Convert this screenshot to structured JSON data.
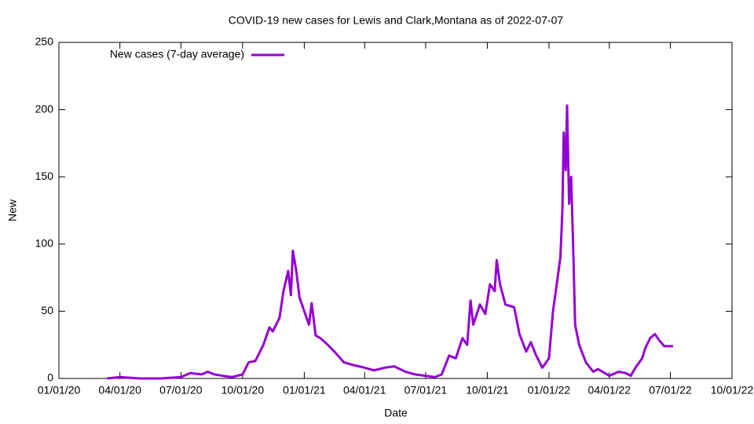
{
  "chart_data": {
    "type": "line",
    "title": "COVID-19 new cases for Lewis and Clark,Montana as of 2022-07-07",
    "xlabel": "Date",
    "ylabel": "New",
    "x": [
      "2020-03-13",
      "2020-04-01",
      "2020-05-01",
      "2020-06-01",
      "2020-07-01",
      "2020-07-15",
      "2020-08-01",
      "2020-08-10",
      "2020-08-20",
      "2020-09-01",
      "2020-09-15",
      "2020-10-01",
      "2020-10-10",
      "2020-10-20",
      "2020-11-01",
      "2020-11-10",
      "2020-11-15",
      "2020-11-25",
      "2020-12-01",
      "2020-12-08",
      "2020-12-12",
      "2020-12-15",
      "2020-12-20",
      "2020-12-25",
      "2021-01-01",
      "2021-01-08",
      "2021-01-12",
      "2021-01-18",
      "2021-01-25",
      "2021-02-05",
      "2021-02-15",
      "2021-03-01",
      "2021-03-15",
      "2021-04-01",
      "2021-04-15",
      "2021-05-01",
      "2021-05-15",
      "2021-06-01",
      "2021-06-15",
      "2021-07-01",
      "2021-07-15",
      "2021-07-25",
      "2021-08-05",
      "2021-08-15",
      "2021-08-25",
      "2021-09-01",
      "2021-09-06",
      "2021-09-10",
      "2021-09-20",
      "2021-09-28",
      "2021-10-05",
      "2021-10-12",
      "2021-10-15",
      "2021-10-20",
      "2021-10-28",
      "2021-11-10",
      "2021-11-18",
      "2021-11-28",
      "2021-12-05",
      "2021-12-12",
      "2021-12-22",
      "2022-01-01",
      "2022-01-07",
      "2022-01-12",
      "2022-01-18",
      "2022-01-21",
      "2022-01-23",
      "2022-01-26",
      "2022-01-28",
      "2022-01-31",
      "2022-02-03",
      "2022-02-06",
      "2022-02-09",
      "2022-02-15",
      "2022-02-25",
      "2022-03-08",
      "2022-03-15",
      "2022-04-01",
      "2022-04-15",
      "2022-04-25",
      "2022-05-03",
      "2022-05-10",
      "2022-05-20",
      "2022-05-25",
      "2022-06-01",
      "2022-06-08",
      "2022-06-15",
      "2022-06-22",
      "2022-07-05"
    ],
    "series": [
      {
        "name": "New cases (7-day average)",
        "color": "#9400d3",
        "values": [
          0,
          1,
          0,
          0,
          1,
          4,
          3,
          5,
          3,
          2,
          1,
          3,
          12,
          13,
          25,
          38,
          35,
          45,
          65,
          80,
          62,
          95,
          80,
          60,
          50,
          40,
          56,
          32,
          30,
          25,
          20,
          12,
          10,
          8,
          6,
          8,
          9,
          5,
          3,
          2,
          1,
          3,
          17,
          15,
          30,
          25,
          58,
          40,
          55,
          48,
          70,
          65,
          88,
          70,
          55,
          53,
          33,
          20,
          27,
          18,
          8,
          15,
          50,
          68,
          90,
          125,
          183,
          155,
          203,
          130,
          150,
          100,
          40,
          25,
          12,
          5,
          7,
          2,
          5,
          4,
          2,
          8,
          15,
          23,
          30,
          33,
          28,
          24,
          24
        ]
      }
    ],
    "xlim": [
      "2020-01-01",
      "2022-10-01"
    ],
    "xticks": [
      {
        "value": "2020-01-01",
        "label": "01/01/20"
      },
      {
        "value": "2020-04-01",
        "label": "04/01/20"
      },
      {
        "value": "2020-07-01",
        "label": "07/01/20"
      },
      {
        "value": "2020-10-01",
        "label": "10/01/20"
      },
      {
        "value": "2021-01-01",
        "label": "01/01/21"
      },
      {
        "value": "2021-04-01",
        "label": "04/01/21"
      },
      {
        "value": "2021-07-01",
        "label": "07/01/21"
      },
      {
        "value": "2021-10-01",
        "label": "10/01/21"
      },
      {
        "value": "2022-01-01",
        "label": "01/01/22"
      },
      {
        "value": "2022-04-01",
        "label": "04/01/22"
      },
      {
        "value": "2022-07-01",
        "label": "07/01/22"
      },
      {
        "value": "2022-10-01",
        "label": "10/01/22"
      }
    ],
    "ylim": [
      0,
      250
    ],
    "yticks": [
      0,
      50,
      100,
      150,
      200,
      250
    ],
    "legend": "top-left"
  }
}
